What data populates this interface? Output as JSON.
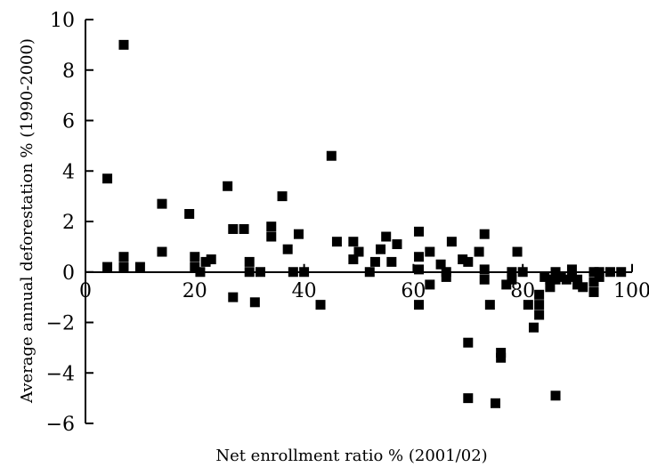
{
  "chart_data": {
    "type": "scatter",
    "title": "",
    "xlabel": "Net enrollment ratio % (2001/02)",
    "ylabel": "Average annual deforestation % (1990-2000)",
    "xlim": [
      0,
      100
    ],
    "ylim": [
      -6,
      10
    ],
    "x_ticks": [
      0,
      20,
      40,
      60,
      80,
      100
    ],
    "x_tick_labels": [
      "0",
      "20",
      "40",
      "60",
      "80",
      "100"
    ],
    "y_ticks": [
      -6,
      -4,
      -2,
      0,
      2,
      4,
      6,
      8,
      10
    ],
    "y_tick_labels": [
      "−6",
      "−4",
      "−2",
      "0",
      "2",
      "4",
      "6",
      "8",
      "10"
    ],
    "grid": false,
    "marker": "square",
    "color": "#000000",
    "points": [
      [
        4,
        3.7
      ],
      [
        4,
        0.2
      ],
      [
        7,
        9.0
      ],
      [
        7,
        0.6
      ],
      [
        7,
        0.2
      ],
      [
        10,
        0.2
      ],
      [
        14,
        2.7
      ],
      [
        14,
        0.8
      ],
      [
        19,
        2.3
      ],
      [
        20,
        0.2
      ],
      [
        20,
        0.6
      ],
      [
        21,
        0.0
      ],
      [
        22,
        0.4
      ],
      [
        23,
        0.5
      ],
      [
        26,
        3.4
      ],
      [
        27,
        1.7
      ],
      [
        27,
        -1.0
      ],
      [
        29,
        1.7
      ],
      [
        30,
        0.4
      ],
      [
        30,
        0.0
      ],
      [
        31,
        -1.2
      ],
      [
        32,
        0.0
      ],
      [
        34,
        1.8
      ],
      [
        34,
        1.4
      ],
      [
        36,
        3.0
      ],
      [
        37,
        0.9
      ],
      [
        38,
        0.0
      ],
      [
        39,
        1.5
      ],
      [
        40,
        0.0
      ],
      [
        43,
        -1.3
      ],
      [
        45,
        4.6
      ],
      [
        46,
        1.2
      ],
      [
        49,
        1.2
      ],
      [
        49,
        0.5
      ],
      [
        50,
        0.8
      ],
      [
        52,
        0.0
      ],
      [
        53,
        0.4
      ],
      [
        54,
        0.9
      ],
      [
        55,
        1.4
      ],
      [
        56,
        0.4
      ],
      [
        57,
        1.1
      ],
      [
        61,
        1.6
      ],
      [
        61,
        0.6
      ],
      [
        61,
        0.1
      ],
      [
        61,
        -1.3
      ],
      [
        63,
        0.8
      ],
      [
        63,
        -0.5
      ],
      [
        65,
        0.3
      ],
      [
        66,
        0.0
      ],
      [
        66,
        -0.2
      ],
      [
        67,
        1.2
      ],
      [
        69,
        0.5
      ],
      [
        70,
        0.4
      ],
      [
        70,
        -2.8
      ],
      [
        70,
        -5.0
      ],
      [
        72,
        0.8
      ],
      [
        73,
        1.5
      ],
      [
        73,
        0.1
      ],
      [
        73,
        -0.3
      ],
      [
        74,
        -1.3
      ],
      [
        75,
        -5.2
      ],
      [
        76,
        -3.2
      ],
      [
        76,
        -3.4
      ],
      [
        77,
        -0.5
      ],
      [
        78,
        -0.3
      ],
      [
        78,
        0.0
      ],
      [
        79,
        0.8
      ],
      [
        80,
        0.0
      ],
      [
        81,
        -1.3
      ],
      [
        82,
        -2.2
      ],
      [
        83,
        -0.9
      ],
      [
        83,
        -1.3
      ],
      [
        83,
        -1.7
      ],
      [
        84,
        -0.2
      ],
      [
        85,
        -0.6
      ],
      [
        85,
        -0.3
      ],
      [
        86,
        -4.9
      ],
      [
        86,
        0.0
      ],
      [
        86,
        -0.3
      ],
      [
        87,
        -0.2
      ],
      [
        88,
        -0.3
      ],
      [
        89,
        0.1
      ],
      [
        89,
        -0.2
      ],
      [
        90,
        -0.5
      ],
      [
        90,
        -0.3
      ],
      [
        91,
        -0.6
      ],
      [
        93,
        -0.4
      ],
      [
        93,
        -0.8
      ],
      [
        93,
        0.0
      ],
      [
        94,
        -0.2
      ],
      [
        94,
        0.0
      ],
      [
        96,
        0.0
      ],
      [
        98,
        0.0
      ]
    ]
  }
}
